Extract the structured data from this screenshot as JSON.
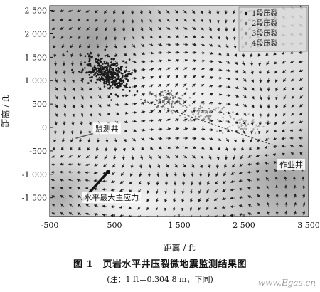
{
  "chart_data": {
    "type": "scatter",
    "xlabel": "距离 / ft",
    "ylabel": "距离 / ft",
    "xlim": [
      -500,
      3500
    ],
    "ylim": [
      -1900,
      2600
    ],
    "xticks": [
      -500,
      500,
      1500,
      2500,
      3500
    ],
    "xtick_labels": [
      "-500",
      "500",
      "1 500",
      "2 500",
      "3 500"
    ],
    "yticks": [
      2500,
      2000,
      1500,
      1000,
      500,
      0,
      -500,
      -1000,
      -1500
    ],
    "ytick_labels": [
      "2 500",
      "2 000",
      "1 500",
      "1 000",
      "500",
      "0",
      "-500",
      "-1 000",
      "-1 500"
    ],
    "legend_position": "top-right",
    "series": [
      {
        "name": "1段压裂",
        "color": "#1a1a1a",
        "center": [
          400,
          1150
        ],
        "spread": [
          240,
          260
        ],
        "count": 360
      },
      {
        "name": "2段压裂",
        "color": "#6f6f6f",
        "center": [
          1300,
          580
        ],
        "spread": [
          260,
          200
        ],
        "count": 90
      },
      {
        "name": "3段压裂",
        "color": "#8a8a8a",
        "center": [
          1900,
          320
        ],
        "spread": [
          300,
          180
        ],
        "count": 80
      },
      {
        "name": "4段压裂",
        "color": "#a5a5a5",
        "center": [
          2450,
          60
        ],
        "spread": [
          320,
          160
        ],
        "count": 60
      }
    ],
    "annotations": [
      {
        "text": "监测井",
        "x": 200,
        "y": -80
      },
      {
        "text": "作业井",
        "x": 3050,
        "y": -850
      },
      {
        "text": "水平最大主应力",
        "x": 30,
        "y": -1550
      }
    ],
    "monitoring_well": [
      [
        -100,
        -230
      ],
      [
        250,
        -100
      ]
    ],
    "operation_well": [
      [
        900,
        600
      ],
      [
        3050,
        -420
      ]
    ],
    "stress_arrow": [
      [
        0,
        -1560
      ],
      [
        400,
        -950
      ]
    ]
  },
  "caption": "图 1　页岩水平井压裂微地震监测结果图",
  "note": "(注：1 ft＝0.304 8 m，下同)",
  "watermark": "www.Egas.cn"
}
